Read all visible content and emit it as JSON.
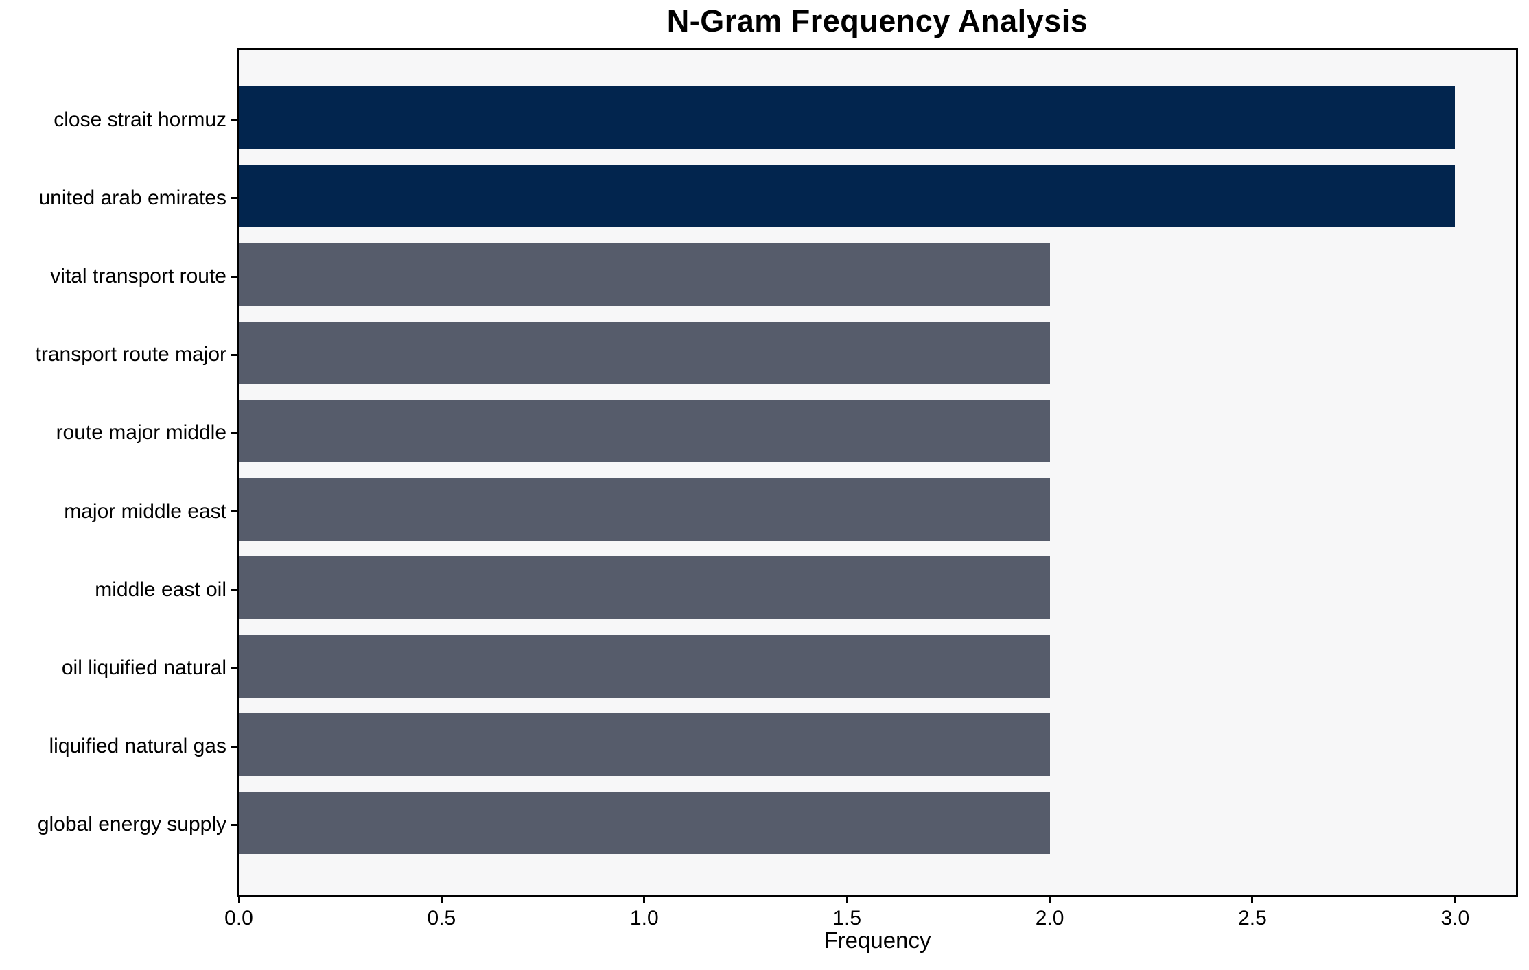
{
  "chart_data": {
    "type": "bar",
    "orientation": "horizontal",
    "title": "N-Gram Frequency Analysis",
    "xlabel": "Frequency",
    "ylabel": "",
    "categories": [
      "close strait hormuz",
      "united arab emirates",
      "vital transport route",
      "transport route major",
      "route major middle",
      "major middle east",
      "middle east oil",
      "oil liquified natural",
      "liquified natural gas",
      "global energy supply"
    ],
    "values": [
      3,
      3,
      2,
      2,
      2,
      2,
      2,
      2,
      2,
      2
    ],
    "bar_colors": [
      "#02254e",
      "#02254e",
      "#565c6b",
      "#565c6b",
      "#565c6b",
      "#565c6b",
      "#565c6b",
      "#565c6b",
      "#565c6b",
      "#565c6b"
    ],
    "xticks": [
      0,
      0.5,
      1,
      1.5,
      2,
      2.5,
      3
    ],
    "xtick_labels": [
      "0.0",
      "0.5",
      "1.0",
      "1.5",
      "2.0",
      "2.5",
      "3.0"
    ],
    "xlim": [
      0,
      3.15
    ],
    "bar_height_frac": 0.8,
    "y_margin": 0.89,
    "grid": false,
    "legend_position": "none",
    "colors": {
      "highlight_bar": "#02254e",
      "default_bar": "#565c6b",
      "plot_bg": "#f7f7f8",
      "figure_bg": "#ffffff",
      "spine": "#000000",
      "text": "#000000"
    }
  }
}
